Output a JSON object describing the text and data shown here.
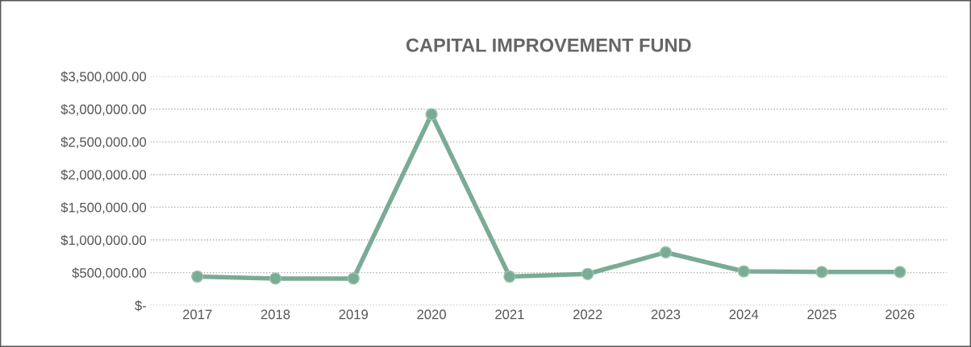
{
  "chart_data": {
    "type": "line",
    "title": "CAPITAL IMPROVEMENT FUND",
    "categories": [
      "2017",
      "2018",
      "2019",
      "2020",
      "2021",
      "2022",
      "2023",
      "2024",
      "2025",
      "2026"
    ],
    "series": [
      {
        "color": "#7aab95",
        "values": [
          440000,
          410000,
          410000,
          2920000,
          440000,
          480000,
          810000,
          520000,
          510000,
          510000
        ]
      }
    ],
    "ylim": [
      0,
      3500000
    ],
    "yticks": [
      {
        "value": 0,
        "label": "$-"
      },
      {
        "value": 500000,
        "label": "$500,000.00"
      },
      {
        "value": 1000000,
        "label": "$1,000,000.00"
      },
      {
        "value": 1500000,
        "label": "$1,500,000.00"
      },
      {
        "value": 2000000,
        "label": "$2,000,000.00"
      },
      {
        "value": 2500000,
        "label": "$2,500,000.00"
      },
      {
        "value": 3000000,
        "label": "$3,000,000.00"
      },
      {
        "value": 3500000,
        "label": "$3,500,000.00"
      }
    ],
    "grid": "y",
    "marker": "circle",
    "line_style": "solid",
    "legend": false
  }
}
